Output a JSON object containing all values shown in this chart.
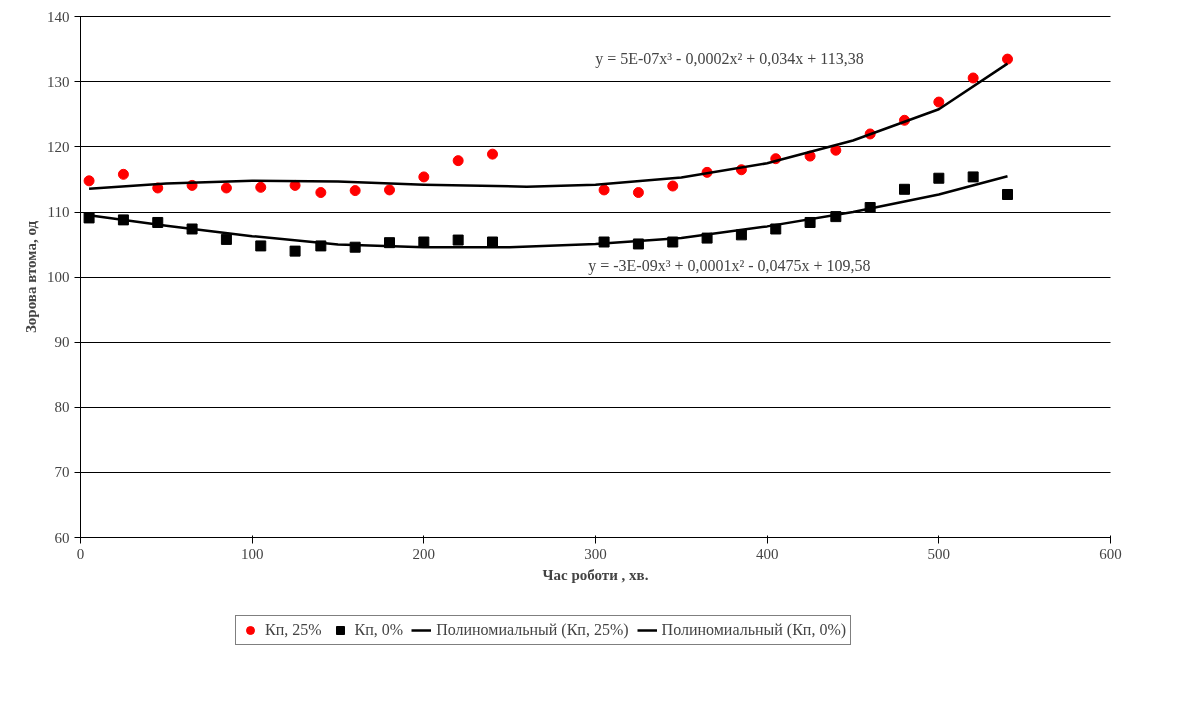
{
  "chart_data": {
    "type": "scatter",
    "xlabel": "Час роботи , хв.",
    "ylabel": "Зорова втома, од",
    "xlim": [
      0,
      600
    ],
    "ylim": [
      60,
      140
    ],
    "xticks": [
      0,
      100,
      200,
      300,
      400,
      500,
      600
    ],
    "yticks": [
      60,
      70,
      80,
      90,
      100,
      110,
      120,
      130,
      140
    ],
    "grid": "y",
    "legend": "bottom",
    "series": [
      {
        "name": "Кп, 25%",
        "color": "#ff0000",
        "marker": "circle",
        "x": [
          5,
          25,
          45,
          65,
          85,
          105,
          125,
          140,
          160,
          180,
          200,
          220,
          240,
          305,
          325,
          345,
          365,
          385,
          405,
          425,
          440,
          460,
          480,
          500,
          520,
          540
        ],
        "values": [
          114.8,
          115.8,
          113.7,
          114.1,
          113.7,
          113.8,
          114.1,
          113.0,
          113.3,
          113.4,
          115.4,
          117.9,
          118.9,
          113.4,
          113.0,
          114.0,
          116.1,
          116.5,
          118.2,
          118.6,
          119.5,
          122.0,
          124.1,
          126.9,
          130.6,
          133.5
        ]
      },
      {
        "name": "Кп, 0%",
        "color": "#000000",
        "marker": "square",
        "x": [
          5,
          25,
          45,
          65,
          85,
          105,
          125,
          140,
          160,
          180,
          200,
          220,
          240,
          305,
          325,
          345,
          365,
          385,
          405,
          425,
          440,
          460,
          480,
          500,
          520,
          540
        ],
        "values": [
          109.1,
          108.8,
          108.4,
          107.4,
          105.8,
          104.8,
          104.0,
          104.8,
          104.6,
          105.3,
          105.4,
          105.7,
          105.4,
          105.4,
          105.1,
          105.4,
          106.0,
          106.5,
          107.4,
          108.4,
          109.3,
          110.7,
          113.5,
          115.2,
          115.4,
          112.7
        ]
      },
      {
        "name": "Полиномиальный (Кп, 25%)",
        "type": "line",
        "color": "#000000",
        "x": [
          5,
          50,
          100,
          150,
          200,
          260,
          300,
          350,
          400,
          450,
          500,
          540
        ],
        "values": [
          113.6,
          114.4,
          114.8,
          114.7,
          114.2,
          113.9,
          114.2,
          115.3,
          117.5,
          121.0,
          125.8,
          132.8
        ]
      },
      {
        "name": "Полиномиальный (Кп, 0%)",
        "type": "line",
        "color": "#000000",
        "x": [
          5,
          50,
          100,
          150,
          200,
          250,
          300,
          350,
          400,
          450,
          500,
          540
        ],
        "values": [
          109.5,
          107.9,
          106.3,
          105.0,
          104.6,
          104.6,
          105.1,
          106.0,
          107.8,
          110.0,
          112.7,
          115.5
        ]
      }
    ],
    "annotations": [
      "y = 5E-07x³ - 0,0002x² + 0,034x + 113,38",
      "y = -3E-09x³ + 0,0001x² - 0,0475x + 109,58"
    ]
  }
}
